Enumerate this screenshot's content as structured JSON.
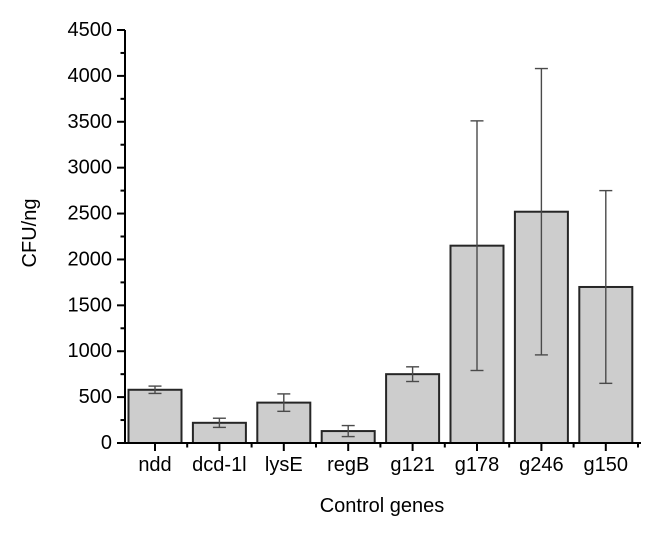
{
  "figure": {
    "background": "#ffffff",
    "text_color": "#000000",
    "axis_color": "#000000",
    "bar_fill": "#cdcdcd",
    "bar_stroke": "#262626",
    "error_color": "#4a4a4a"
  },
  "chart_data": {
    "type": "bar",
    "title": "",
    "xlabel": "Control genes",
    "ylabel": "CFU/ng",
    "categories": [
      "ndd",
      "dcd-1l",
      "lysE",
      "regB",
      "g121",
      "g178",
      "g246",
      "g150"
    ],
    "values": [
      580,
      220,
      440,
      130,
      750,
      2150,
      2520,
      1700
    ],
    "errors": [
      40,
      50,
      95,
      60,
      80,
      1360,
      1560,
      1050
    ],
    "ylim": [
      0,
      4500
    ],
    "y_major_step": 500,
    "y_minor_step": 250,
    "y_tick_labels": [
      "0",
      "500",
      "1000",
      "1500",
      "2000",
      "2500",
      "3000",
      "3500",
      "4000",
      "4500"
    ],
    "grid": false,
    "legend": null,
    "bar_width_fraction": 0.82,
    "error_caps": true
  }
}
